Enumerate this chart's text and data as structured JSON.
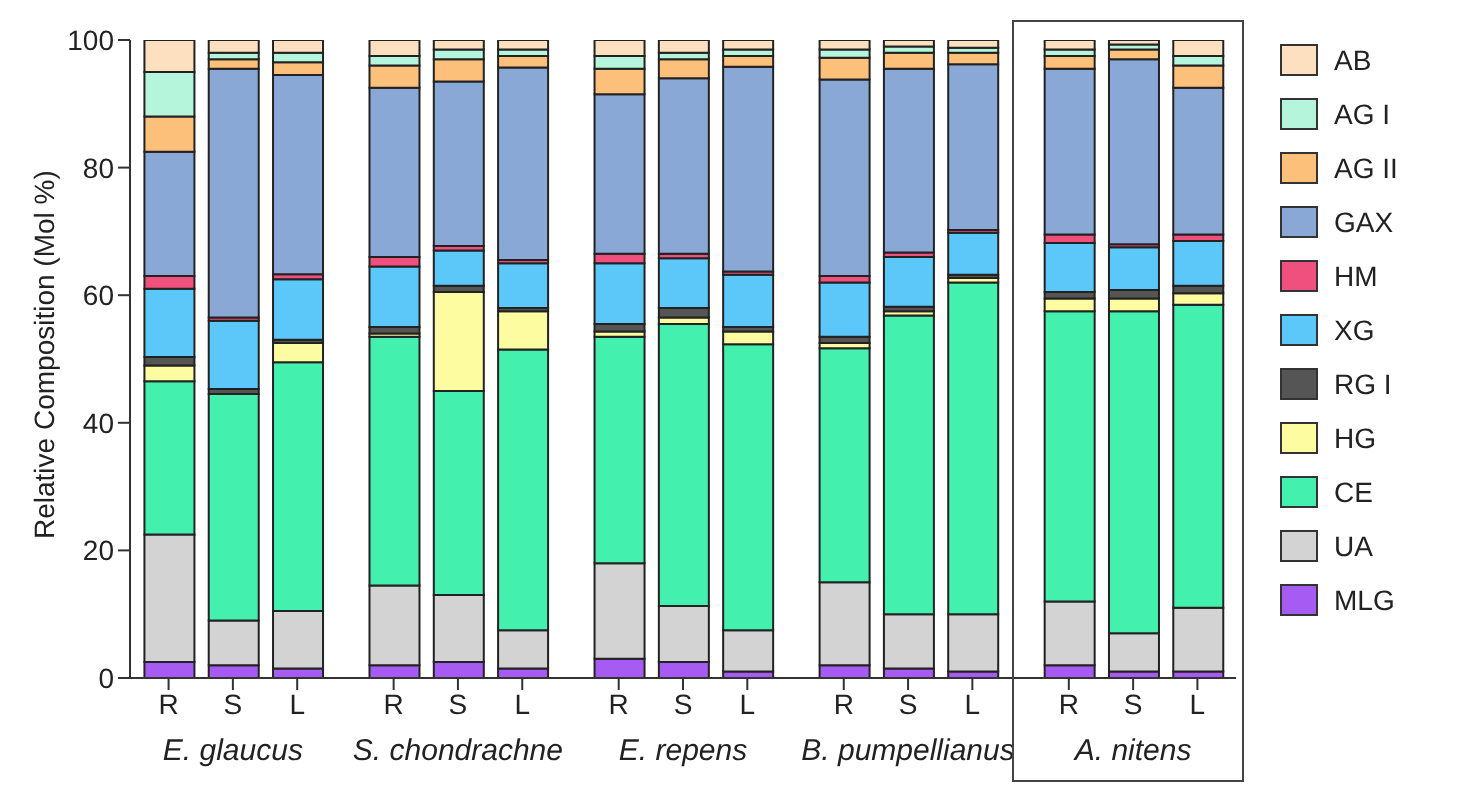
{
  "chart_data": {
    "type": "bar",
    "stacked": true,
    "ylabel": "Relative Composition (Mol %)",
    "categories": [
      "R",
      "S",
      "L",
      "R",
      "S",
      "L",
      "R",
      "S",
      "L",
      "R",
      "S",
      "L",
      "R",
      "S",
      "L"
    ],
    "annotations": [
      "E. glaucus",
      "S. chondrachne",
      "E. repens",
      "B. pumpellianus",
      "A. nitens"
    ],
    "ylim": [
      0,
      100
    ],
    "yticks": [
      0,
      20,
      40,
      60,
      80,
      100
    ],
    "legend": "right",
    "series": [
      {
        "name": "MLG",
        "color": "#a65cf2",
        "values": [
          2.5,
          2,
          1.5,
          2,
          2.5,
          1.5,
          3,
          2.5,
          1,
          2,
          1.5,
          1,
          2,
          1,
          1
        ]
      },
      {
        "name": "UA",
        "color": "#d3d3d3",
        "values": [
          20,
          7,
          9,
          12.5,
          10.5,
          6,
          15,
          8.8,
          6.5,
          13,
          8.5,
          9,
          10,
          6,
          10
        ]
      },
      {
        "name": "CE",
        "color": "#44f0ae",
        "values": [
          24,
          35.5,
          39,
          39,
          32,
          44,
          35.5,
          44.2,
          44.8,
          36.7,
          46.8,
          52,
          45.5,
          50.5,
          47.5
        ]
      },
      {
        "name": "HG",
        "color": "#fefca0",
        "values": [
          2.5,
          null,
          3,
          0.5,
          15.5,
          6,
          0.8,
          1,
          2,
          0.8,
          0.7,
          0.7,
          2,
          2,
          1.8
        ]
      },
      {
        "name": "RG I",
        "color": "#555555",
        "values": [
          1.3,
          0.8,
          0.5,
          1,
          1,
          0.5,
          1.2,
          1.5,
          0.7,
          1,
          0.7,
          0.5,
          1,
          1.3,
          1.2
        ]
      },
      {
        "name": "XG",
        "color": "#5cc8fa",
        "values": [
          10.7,
          10.7,
          9.5,
          9.5,
          5.5,
          7,
          9.5,
          7.8,
          8.2,
          8.5,
          7.8,
          6.6,
          7.7,
          6.7,
          7
        ]
      },
      {
        "name": "HM",
        "color": "#f0507e",
        "values": [
          2,
          0.5,
          0.8,
          1.5,
          0.7,
          0.5,
          1.5,
          0.7,
          0.5,
          1,
          0.7,
          0.4,
          1.3,
          0.5,
          1
        ]
      },
      {
        "name": "GAX",
        "color": "#8aa8d6",
        "values": [
          19.5,
          39,
          31.2,
          26.5,
          25.8,
          30.2,
          25,
          27.5,
          32.1,
          30.8,
          28.8,
          26,
          26,
          29,
          23
        ]
      },
      {
        "name": "AG II",
        "color": "#fcc07a",
        "values": [
          5.5,
          1.5,
          2,
          3.5,
          3.5,
          1.8,
          4,
          3,
          1.7,
          3.4,
          2.5,
          1.8,
          2,
          1.5,
          3.5
        ]
      },
      {
        "name": "AG I",
        "color": "#b5f5dc",
        "values": [
          7,
          1,
          1.5,
          1.5,
          1.5,
          1,
          2,
          1,
          1,
          1.3,
          1,
          0.8,
          1,
          0.8,
          1.5
        ]
      },
      {
        "name": "AB",
        "color": "#fde0c0",
        "values": [
          5,
          2,
          2,
          2.5,
          1.5,
          1.5,
          2.5,
          2,
          1.5,
          1.5,
          1,
          1.2,
          1.5,
          1,
          2.5
        ]
      }
    ]
  }
}
